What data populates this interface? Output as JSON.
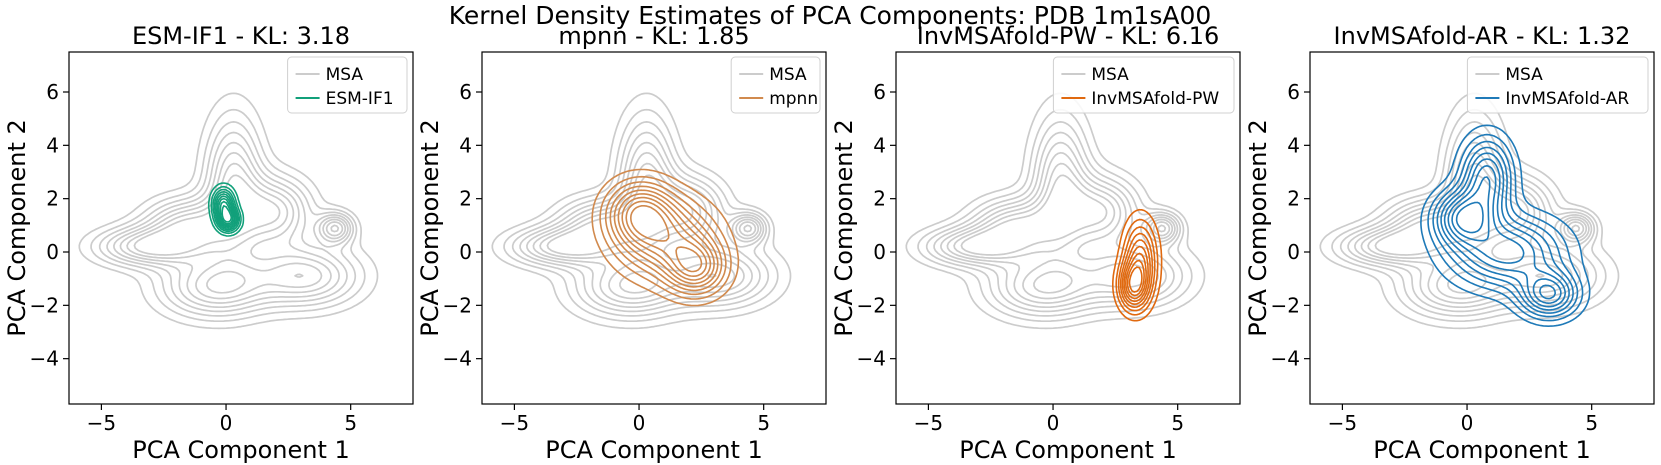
{
  "figure_title": "Kernel Density Estimates of PCA Components: PDB 1m1sA00",
  "colors": {
    "reference": "#cccccc",
    "esm_if1": "#11a07a",
    "mpnn": "#d18a4e",
    "invmsafold_pw": "#e0690f",
    "invmsafold_ar": "#1f7ab8"
  },
  "chart_data": [
    {
      "type": "kde_contour",
      "title": "ESM-IF1 - KL: 3.18",
      "xlabel": "PCA Component 1",
      "ylabel": "PCA Component 2",
      "xlim": [
        -6.3,
        7.5
      ],
      "ylim": [
        -5.7,
        7.5
      ],
      "xticks": [
        -5,
        0,
        5
      ],
      "yticks": [
        -4,
        -2,
        0,
        2,
        4,
        6
      ],
      "legend": [
        "MSA",
        "ESM-IF1"
      ],
      "legend_position": "top-right",
      "series": [
        {
          "name": "MSA",
          "color": "#cccccc",
          "peaks": [
            [
              -3.2,
              0.2,
              1.4,
              0.5
            ],
            [
              -1.5,
              1.0,
              1.2,
              0.7
            ],
            [
              0.3,
              2.5,
              0.8,
              1.8
            ],
            [
              2.0,
              1.5,
              1.0,
              0.9
            ],
            [
              4.4,
              0.9,
              0.5,
              0.4
            ],
            [
              3.2,
              -0.9,
              1.5,
              0.8
            ],
            [
              -0.5,
              -1.3,
              1.5,
              0.8
            ]
          ],
          "levels": 8
        },
        {
          "name": "ESM-IF1",
          "color": "#11a07a",
          "peaks": [
            [
              -0.1,
              1.8,
              0.3,
              0.4
            ],
            [
              0.1,
              1.2,
              0.3,
              0.3
            ]
          ],
          "levels": 9
        }
      ]
    },
    {
      "type": "kde_contour",
      "title": "mpnn - KL: 1.85",
      "xlabel": "PCA Component 1",
      "ylabel": "PCA Component 2",
      "xlim": [
        -6.3,
        7.5
      ],
      "ylim": [
        -5.7,
        7.5
      ],
      "xticks": [
        -5,
        0,
        5
      ],
      "yticks": [
        -4,
        -2,
        0,
        2,
        4,
        6
      ],
      "legend": [
        "MSA",
        "mpnn"
      ],
      "legend_position": "top-right",
      "series": [
        {
          "name": "MSA",
          "color": "#cccccc",
          "peaks": [
            [
              -3.2,
              0.2,
              1.4,
              0.5
            ],
            [
              -1.5,
              1.0,
              1.2,
              0.7
            ],
            [
              0.3,
              2.5,
              0.8,
              1.8
            ],
            [
              2.0,
              1.5,
              1.0,
              0.9
            ],
            [
              4.4,
              0.9,
              0.5,
              0.4
            ],
            [
              3.2,
              -0.9,
              1.5,
              0.8
            ],
            [
              -0.5,
              -1.3,
              1.5,
              0.8
            ]
          ],
          "levels": 8
        },
        {
          "name": "mpnn",
          "color": "#d18a4e",
          "peaks": [
            [
              0.0,
              1.5,
              0.9,
              0.8
            ],
            [
              2.3,
              -0.6,
              0.8,
              0.7
            ],
            [
              1.1,
              0.5,
              1.3,
              1.0
            ]
          ],
          "levels": 9
        }
      ]
    },
    {
      "type": "kde_contour",
      "title": "InvMSAfold-PW - KL: 6.16",
      "xlabel": "PCA Component 1",
      "ylabel": "PCA Component 2",
      "xlim": [
        -6.3,
        7.5
      ],
      "ylim": [
        -5.7,
        7.5
      ],
      "xticks": [
        -5,
        0,
        5
      ],
      "yticks": [
        -4,
        -2,
        0,
        2,
        4,
        6
      ],
      "legend": [
        "MSA",
        "InvMSAfold-PW"
      ],
      "legend_position": "top-right",
      "series": [
        {
          "name": "MSA",
          "color": "#cccccc",
          "peaks": [
            [
              -3.2,
              0.2,
              1.4,
              0.5
            ],
            [
              -1.5,
              1.0,
              1.2,
              0.7
            ],
            [
              0.3,
              2.5,
              0.8,
              1.8
            ],
            [
              2.0,
              1.5,
              1.0,
              0.9
            ],
            [
              4.4,
              0.9,
              0.5,
              0.4
            ],
            [
              3.2,
              -0.9,
              1.5,
              0.8
            ],
            [
              -0.5,
              -1.3,
              1.5,
              0.8
            ]
          ],
          "levels": 8
        },
        {
          "name": "InvMSAfold-PW",
          "color": "#e0690f",
          "peaks": [
            [
              3.5,
              -0.3,
              0.45,
              1.0
            ],
            [
              3.2,
              -1.3,
              0.4,
              0.6
            ]
          ],
          "levels": 9
        }
      ]
    },
    {
      "type": "kde_contour",
      "title": "InvMSAfold-AR - KL: 1.32",
      "xlabel": "PCA Component 1",
      "ylabel": "PCA Component 2",
      "xlim": [
        -6.3,
        7.5
      ],
      "ylim": [
        -5.7,
        7.5
      ],
      "xticks": [
        -5,
        0,
        5
      ],
      "yticks": [
        -4,
        -2,
        0,
        2,
        4,
        6
      ],
      "legend": [
        "MSA",
        "InvMSAfold-AR"
      ],
      "legend_position": "top-right",
      "series": [
        {
          "name": "MSA",
          "color": "#cccccc",
          "peaks": [
            [
              -3.2,
              0.2,
              1.4,
              0.5
            ],
            [
              -1.5,
              1.0,
              1.2,
              0.7
            ],
            [
              0.3,
              2.5,
              0.8,
              1.8
            ],
            [
              2.0,
              1.5,
              1.0,
              0.9
            ],
            [
              4.4,
              0.9,
              0.5,
              0.4
            ],
            [
              3.2,
              -0.9,
              1.5,
              0.8
            ],
            [
              -0.5,
              -1.3,
              1.5,
              0.8
            ]
          ],
          "levels": 8
        },
        {
          "name": "InvMSAfold-AR",
          "color": "#1f7ab8",
          "peaks": [
            [
              -0.2,
              1.3,
              0.8,
              0.7
            ],
            [
              3.3,
              -1.6,
              0.8,
              0.6
            ],
            [
              1.6,
              0.0,
              1.5,
              0.9
            ],
            [
              0.8,
              2.8,
              0.7,
              1.0
            ]
          ],
          "levels": 9
        }
      ]
    }
  ]
}
